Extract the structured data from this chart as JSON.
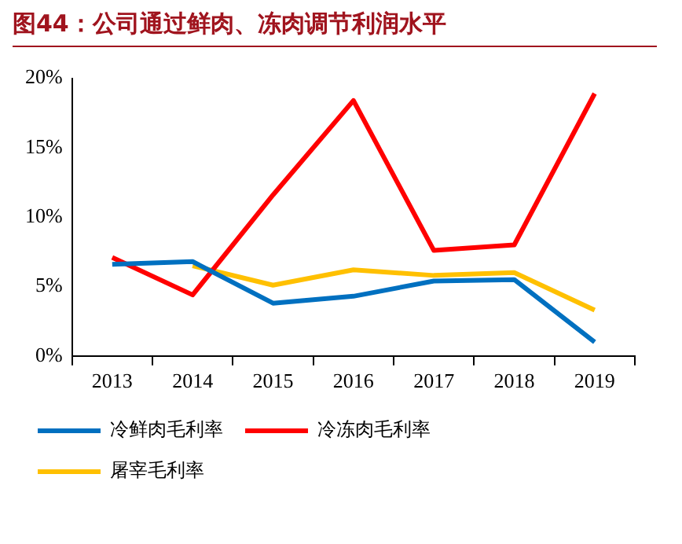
{
  "chart_data": {
    "type": "line",
    "title": "图44：公司通过鲜肉、冻肉调节利润水平",
    "categories": [
      "2013",
      "2014",
      "2015",
      "2016",
      "2017",
      "2018",
      "2019"
    ],
    "series": [
      {
        "name": "冷鲜肉毛利率",
        "color": "#0070c0",
        "values": [
          6.6,
          6.8,
          3.8,
          4.3,
          5.4,
          5.5,
          1.0
        ]
      },
      {
        "name": "冷冻肉毛利率",
        "color": "#ff0000",
        "values": [
          7.1,
          4.4,
          11.6,
          18.4,
          7.6,
          8.0,
          18.9
        ]
      },
      {
        "name": "屠宰毛利率",
        "color": "#ffc000",
        "values": [
          null,
          6.5,
          5.1,
          6.2,
          5.8,
          6.0,
          3.3
        ]
      }
    ],
    "ylim": [
      0,
      20
    ],
    "yticks": [
      {
        "value": 0,
        "label": "0%"
      },
      {
        "value": 5,
        "label": "5%"
      },
      {
        "value": 10,
        "label": "10%"
      },
      {
        "value": 15,
        "label": "15%"
      },
      {
        "value": 20,
        "label": "20%"
      }
    ],
    "grid": false,
    "legend": "bottom",
    "marker": "none",
    "line_style": "solid"
  }
}
